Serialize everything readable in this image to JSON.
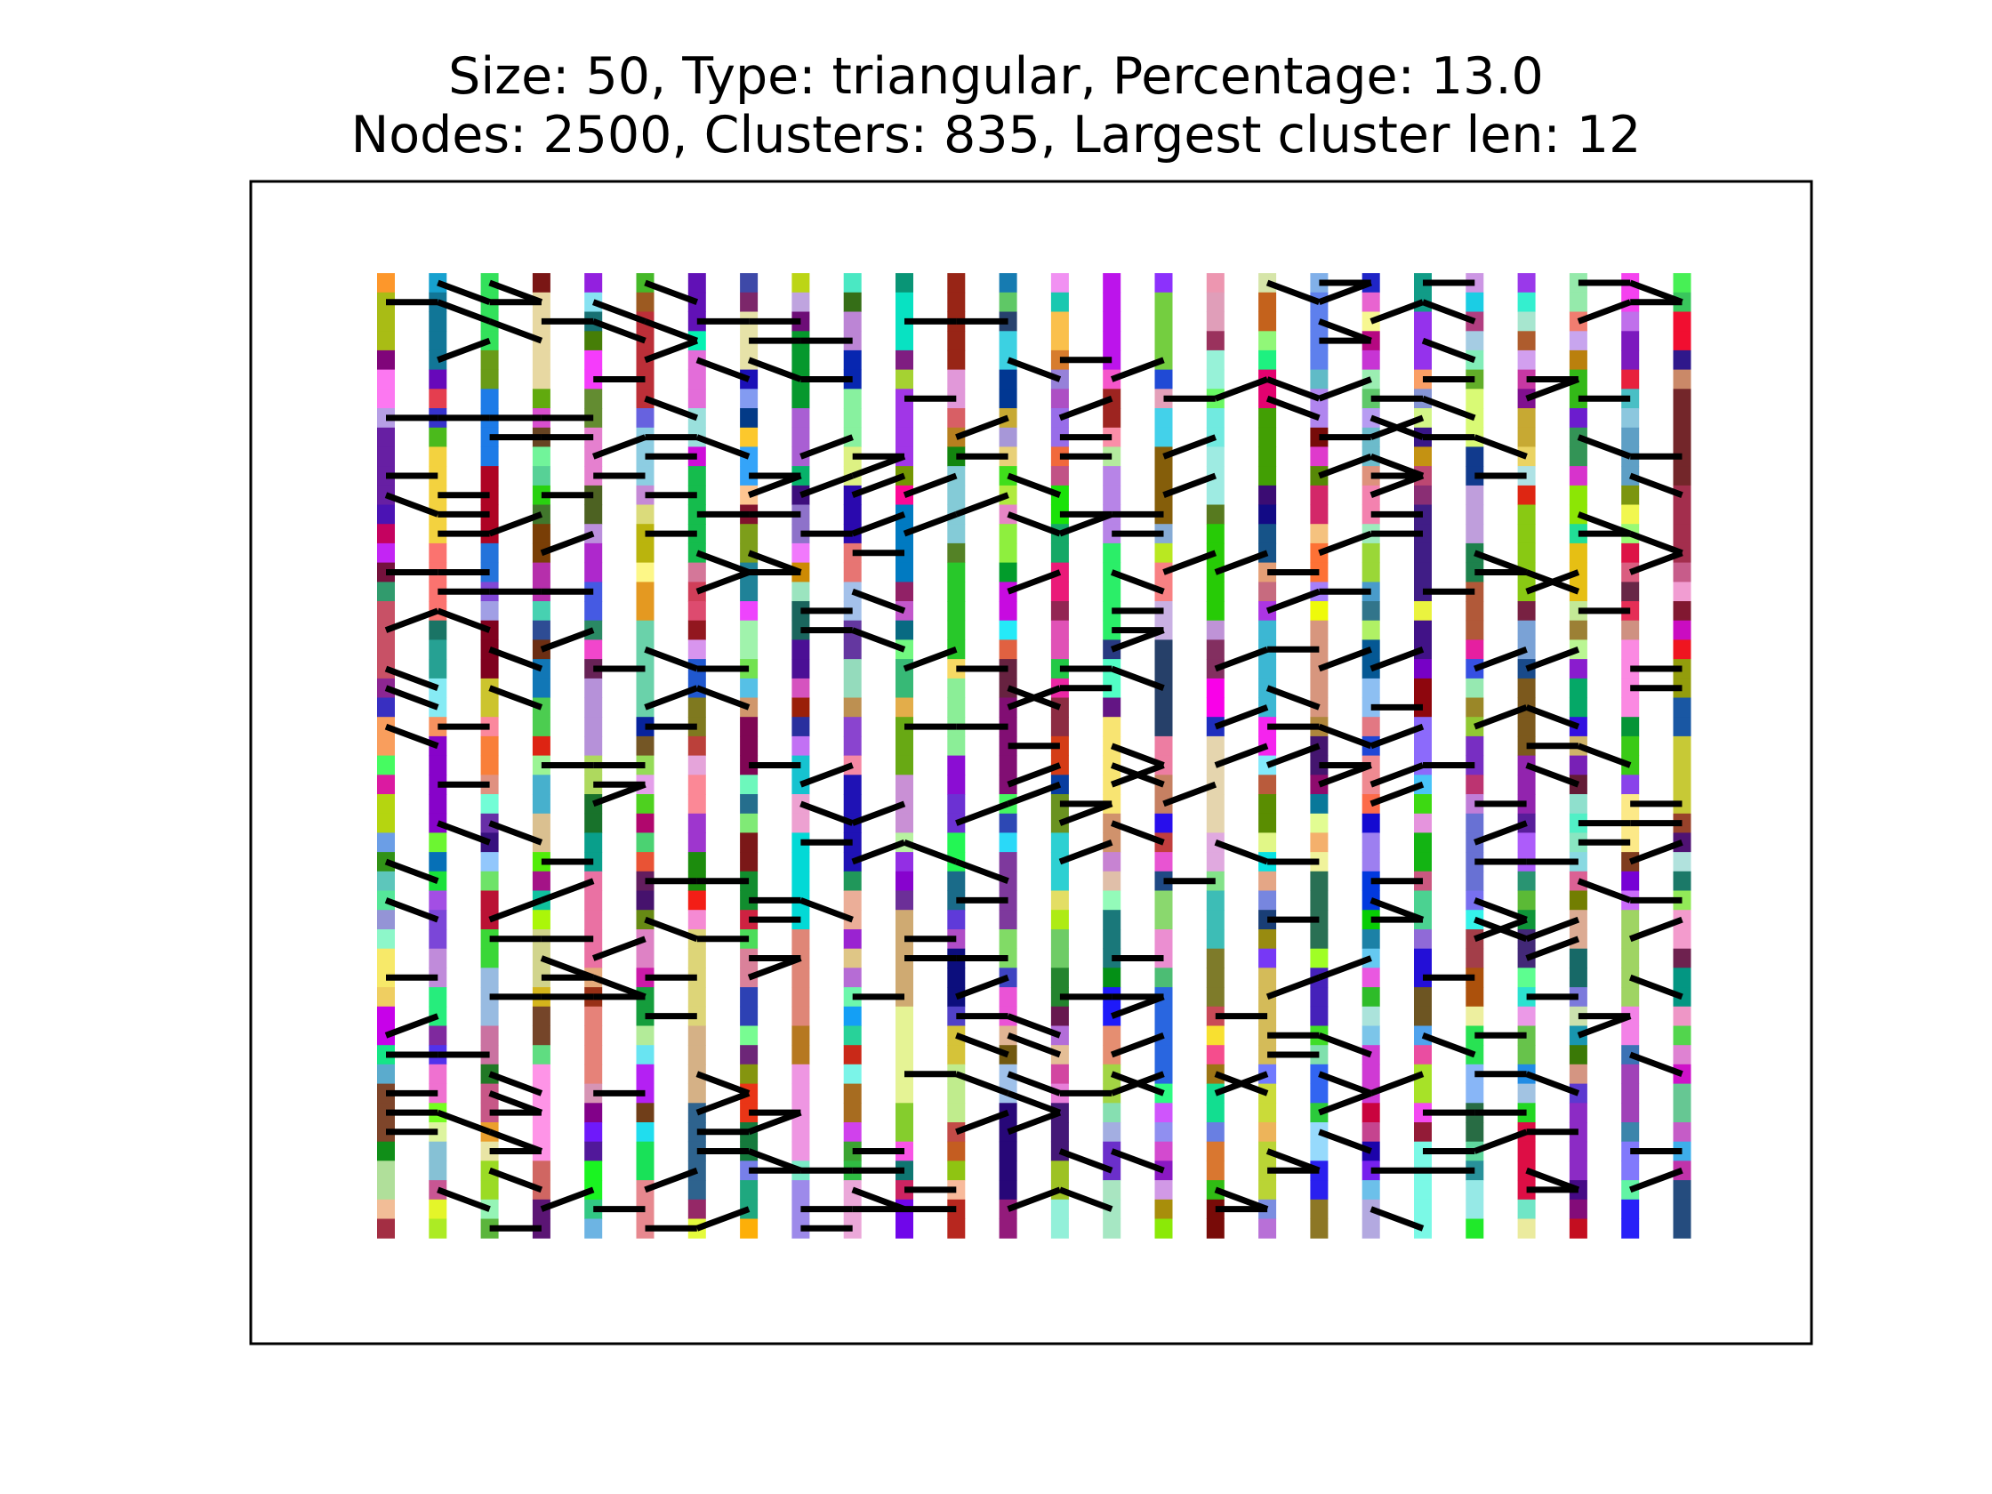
{
  "chart_data": {
    "type": "scatter",
    "title_lines": [
      "Size: 50, Type: triangular, Percentage: 13.0",
      "Nodes: 2500, Clusters: 835, Largest cluster len: 12"
    ],
    "lattice_size": 50,
    "lattice_type": "triangular",
    "percentage": 13.0,
    "nodes": 2500,
    "clusters": 835,
    "largest_cluster_len": 12,
    "axes_visible": false,
    "grid": false,
    "legend": "none",
    "node_colors": "random per cluster",
    "bond_color": "#000000",
    "frame_color": "#000000",
    "background": "#ffffff"
  }
}
